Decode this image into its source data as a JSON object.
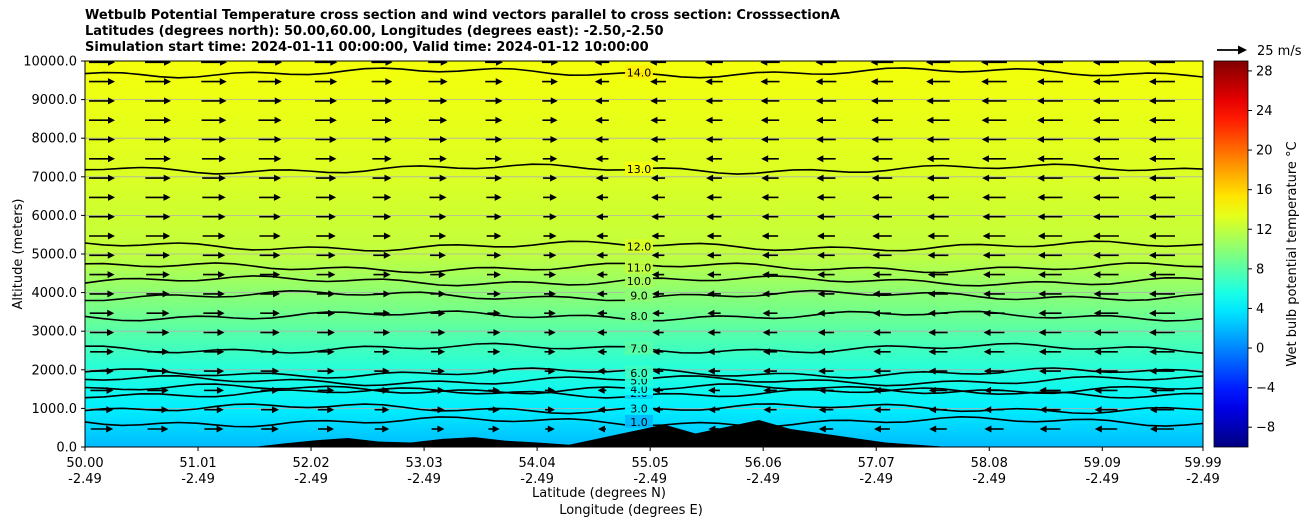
{
  "chart_data": {
    "type": "heatmap",
    "title_lines": [
      "Wetbulb Potential Temperature cross section and wind vectors parallel to cross section: CrosssectionA",
      "Latitudes (degrees north): 50.00,60.00, Longitudes (degrees east): -2.50,-2.50",
      "Simulation start time: 2024-01-11 00:00:00, Valid time: 2024-01-12 10:00:00"
    ],
    "ylabel": "Altitude (meters)",
    "xlabel": "Latitude (degrees N)",
    "xlabel2": "Longitude (degrees E)",
    "ylim": [
      0,
      10000
    ],
    "xlim": [
      50.0,
      59.99
    ],
    "y_ticks": [
      {
        "value": 0,
        "label": "0.0"
      },
      {
        "value": 1000,
        "label": "1000.0"
      },
      {
        "value": 2000,
        "label": "2000.0"
      },
      {
        "value": 3000,
        "label": "3000.0"
      },
      {
        "value": 4000,
        "label": "4000.0"
      },
      {
        "value": 5000,
        "label": "5000.0"
      },
      {
        "value": 6000,
        "label": "6000.0"
      },
      {
        "value": 7000,
        "label": "7000.0"
      },
      {
        "value": 8000,
        "label": "8000.0"
      },
      {
        "value": 9000,
        "label": "9000.0"
      },
      {
        "value": 10000,
        "label": "10000.0"
      }
    ],
    "x_ticks": [
      {
        "lat": 50.0,
        "label1": "50.00",
        "label2": "-2.49"
      },
      {
        "lat": 51.01,
        "label1": "51.01",
        "label2": "-2.49"
      },
      {
        "lat": 52.02,
        "label1": "52.02",
        "label2": "-2.49"
      },
      {
        "lat": 53.03,
        "label1": "53.03",
        "label2": "-2.49"
      },
      {
        "lat": 54.04,
        "label1": "54.04",
        "label2": "-2.49"
      },
      {
        "lat": 55.05,
        "label1": "55.05",
        "label2": "-2.49"
      },
      {
        "lat": 56.06,
        "label1": "56.06",
        "label2": "-2.49"
      },
      {
        "lat": 57.07,
        "label1": "57.07",
        "label2": "-2.49"
      },
      {
        "lat": 58.08,
        "label1": "58.08",
        "label2": "-2.49"
      },
      {
        "lat": 59.09,
        "label1": "59.09",
        "label2": "-2.49"
      },
      {
        "lat": 59.99,
        "label1": "59.99",
        "label2": "-2.49"
      }
    ],
    "colorbar": {
      "label": "Wet bulb potential temperature $^\\circ$C",
      "label_display": "Wet bulb potential temperature °C",
      "range": [
        -10,
        29
      ],
      "ticks": [
        -8,
        -4,
        0,
        4,
        8,
        12,
        16,
        20,
        24,
        28
      ],
      "tick_labels": [
        "−8",
        "−4",
        "0",
        "4",
        "8",
        "12",
        "16",
        "20",
        "24",
        "28"
      ]
    },
    "quiver_key": "25 m/s",
    "contours": [
      {
        "label": "1.0",
        "altitude": 650
      },
      {
        "label": "2.0",
        "altitude": 1400
      },
      {
        "label": "3.0",
        "altitude": 1000
      },
      {
        "label": "4.0",
        "altitude": 1500
      },
      {
        "label": "5.0",
        "altitude": 1720
      },
      {
        "label": "6.0",
        "altitude": 1920
      },
      {
        "label": "7.0",
        "altitude": 2550
      },
      {
        "label": "8.0",
        "altitude": 3400
      },
      {
        "label": "9.0",
        "altitude": 3920
      },
      {
        "label": "10.0",
        "altitude": 4300
      },
      {
        "label": "11.0",
        "altitude": 4650
      },
      {
        "label": "12.0",
        "altitude": 5200
      },
      {
        "label": "13.0",
        "altitude": 7200
      },
      {
        "label": "14.0",
        "altitude": 9700
      }
    ],
    "background_samples": [
      {
        "altitude": 0,
        "temp": 2
      },
      {
        "altitude": 1000,
        "temp": 4
      },
      {
        "altitude": 2000,
        "temp": 6
      },
      {
        "altitude": 3000,
        "temp": 8
      },
      {
        "altitude": 4000,
        "temp": 10
      },
      {
        "altitude": 5000,
        "temp": 12
      },
      {
        "altitude": 7000,
        "temp": 13
      },
      {
        "altitude": 10000,
        "temp": 14
      }
    ]
  }
}
